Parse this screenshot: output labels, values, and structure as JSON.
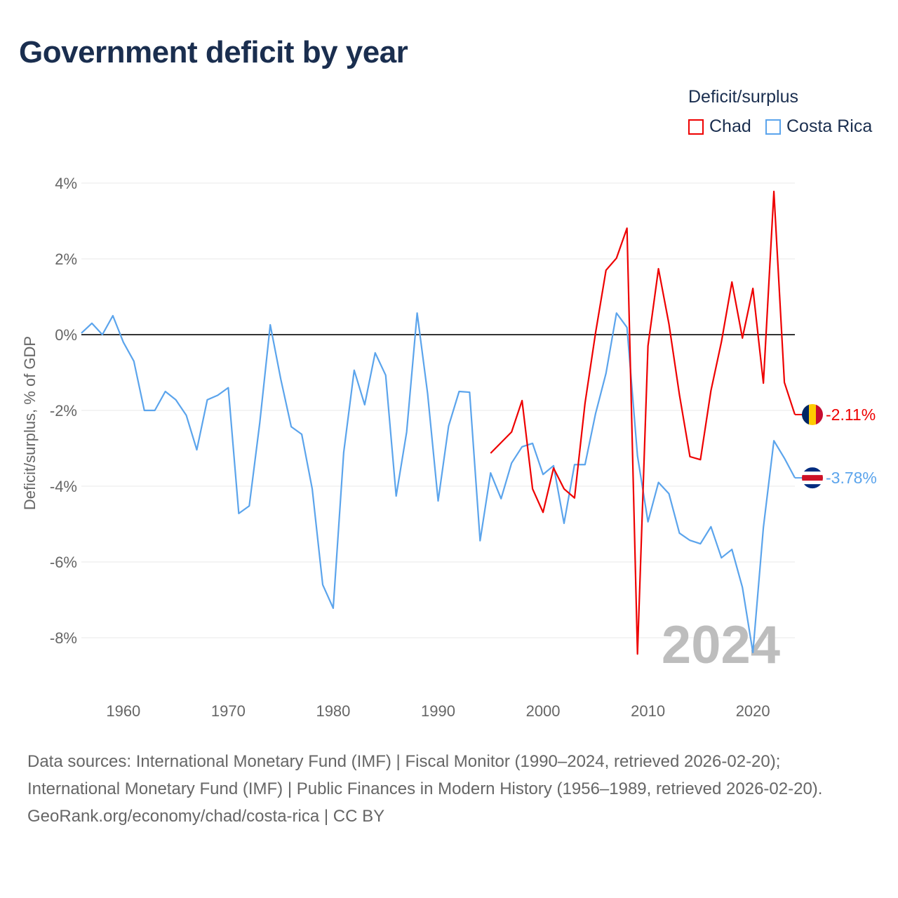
{
  "chart_data": {
    "type": "line",
    "title": "Government deficit by year",
    "xlabel": "",
    "ylabel": "Deficit/surplus, % of GDP",
    "xlim": [
      1956,
      2024
    ],
    "ylim": [
      -9,
      4.3
    ],
    "x_ticks": [
      1960,
      1970,
      1980,
      1990,
      2000,
      2010,
      2020
    ],
    "x_tick_labels": [
      "1960",
      "1970",
      "1980",
      "1990",
      "2000",
      "2010",
      "2020"
    ],
    "y_ticks": [
      4,
      2,
      0,
      -2,
      -4,
      -6,
      -8
    ],
    "y_tick_labels": [
      "4%",
      "2%",
      "0%",
      "-2%",
      "-4%",
      "-6%",
      "-8%"
    ],
    "grid": true,
    "legend_title": "Deficit/surplus",
    "legend_position": "top-right",
    "year_watermark": "2024",
    "series": [
      {
        "name": "Chad",
        "color": "#ee0000",
        "end_label": "-2.11%",
        "flag": "chad-flag",
        "x": [
          1995,
          1996,
          1997,
          1998,
          1999,
          2000,
          2001,
          2002,
          2003,
          2004,
          2005,
          2006,
          2007,
          2008,
          2009,
          2010,
          2011,
          2012,
          2013,
          2014,
          2015,
          2016,
          2017,
          2018,
          2019,
          2020,
          2021,
          2022,
          2023,
          2024
        ],
        "values": [
          -3.13,
          -2.85,
          -2.57,
          -1.74,
          -4.07,
          -4.69,
          -3.52,
          -4.07,
          -4.31,
          -1.81,
          0.04,
          1.7,
          2.02,
          2.81,
          -8.43,
          -0.3,
          1.74,
          0.28,
          -1.59,
          -3.22,
          -3.3,
          -1.48,
          -0.19,
          1.39,
          -0.09,
          1.22,
          -1.28,
          3.78,
          -1.26,
          -2.11
        ]
      },
      {
        "name": "Costa Rica",
        "color": "#5ba4ec",
        "end_label": "-3.78%",
        "flag": "costa-rica-flag",
        "x": [
          1956,
          1957,
          1958,
          1959,
          1960,
          1961,
          1962,
          1963,
          1964,
          1965,
          1966,
          1967,
          1968,
          1969,
          1970,
          1971,
          1972,
          1973,
          1974,
          1975,
          1976,
          1977,
          1978,
          1979,
          1980,
          1981,
          1982,
          1983,
          1984,
          1985,
          1986,
          1987,
          1988,
          1989,
          1990,
          1991,
          1992,
          1993,
          1994,
          1995,
          1996,
          1997,
          1998,
          1999,
          2000,
          2001,
          2002,
          2003,
          2004,
          2005,
          2006,
          2007,
          2008,
          2009,
          2010,
          2011,
          2012,
          2013,
          2014,
          2015,
          2016,
          2017,
          2018,
          2019,
          2020,
          2021,
          2022,
          2023,
          2024
        ],
        "values": [
          0.04,
          0.3,
          0.0,
          0.5,
          -0.2,
          -0.7,
          -2.0,
          -2.0,
          -1.5,
          -1.72,
          -2.13,
          -3.04,
          -1.72,
          -1.6,
          -1.4,
          -4.72,
          -4.52,
          -2.33,
          0.26,
          -1.17,
          -2.43,
          -2.63,
          -4.07,
          -6.6,
          -7.22,
          -3.11,
          -0.94,
          -1.85,
          -0.48,
          -1.07,
          -4.26,
          -2.57,
          0.57,
          -1.56,
          -4.39,
          -2.41,
          -1.5,
          -1.52,
          -5.44,
          -3.65,
          -4.33,
          -3.39,
          -2.96,
          -2.87,
          -3.69,
          -3.46,
          -4.98,
          -3.43,
          -3.43,
          -2.09,
          -1.02,
          0.57,
          0.19,
          -3.2,
          -4.94,
          -3.9,
          -4.2,
          -5.24,
          -5.43,
          -5.52,
          -5.07,
          -5.89,
          -5.67,
          -6.67,
          -8.39,
          -5.09,
          -2.8,
          -3.26,
          -3.78
        ]
      }
    ]
  },
  "footer": {
    "sources": "Data sources: International Monetary Fund (IMF) | Fiscal Monitor (1990–2024, retrieved 2026-02-20); International Monetary Fund (IMF) | Public Finances in Modern History (1956–1989, retrieved 2026-02-20).",
    "credit": "GeoRank.org/economy/chad/costa-rica | CC BY"
  }
}
